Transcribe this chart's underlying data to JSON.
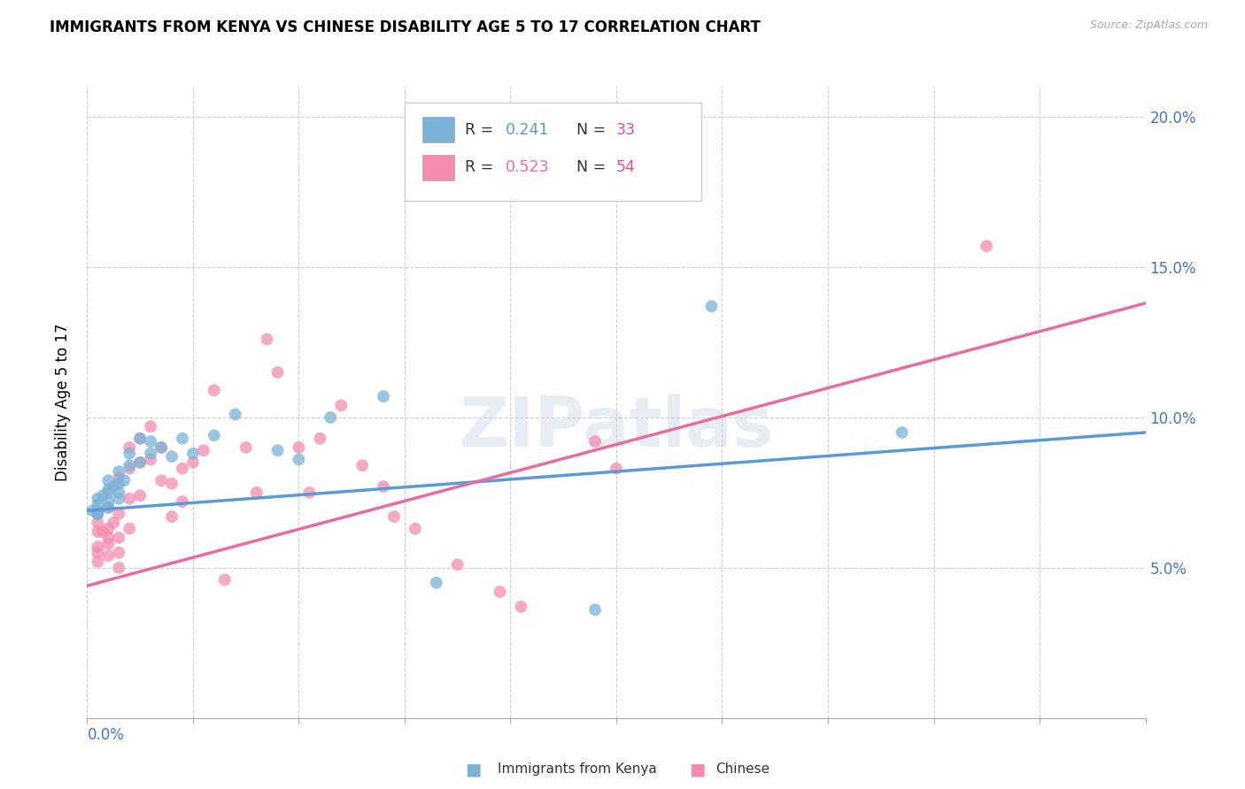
{
  "title": "IMMIGRANTS FROM KENYA VS CHINESE DISABILITY AGE 5 TO 17 CORRELATION CHART",
  "source": "Source: ZipAtlas.com",
  "ylabel": "Disability Age 5 to 17",
  "xlim": [
    0.0,
    0.1
  ],
  "ylim": [
    0.0,
    0.21
  ],
  "yticks": [
    0.05,
    0.1,
    0.15,
    0.2
  ],
  "ytick_labels": [
    "5.0%",
    "10.0%",
    "15.0%",
    "20.0%"
  ],
  "xticks": [
    0.0,
    0.01,
    0.02,
    0.03,
    0.04,
    0.05,
    0.06,
    0.07,
    0.08,
    0.09,
    0.1
  ],
  "color_kenya": "#7ab3d9",
  "color_chinese": "#f48cb1",
  "color_kenya_line": "#5b9bd5",
  "color_chinese_line": "#e86c9f",
  "watermark": "ZIPatlas",
  "kenya_line_x0": 0.0,
  "kenya_line_y0": 0.069,
  "kenya_line_x1": 0.1,
  "kenya_line_y1": 0.095,
  "chinese_line_x0": 0.0,
  "chinese_line_y0": 0.044,
  "chinese_line_x1": 0.1,
  "chinese_line_y1": 0.138,
  "kenya_x": [
    0.0005,
    0.001,
    0.001,
    0.001,
    0.001,
    0.001,
    0.0015,
    0.002,
    0.002,
    0.002,
    0.002,
    0.002,
    0.0025,
    0.003,
    0.003,
    0.003,
    0.003,
    0.0035,
    0.004,
    0.004,
    0.005,
    0.005,
    0.006,
    0.006,
    0.007,
    0.008,
    0.009,
    0.01,
    0.012,
    0.014,
    0.018,
    0.02,
    0.023,
    0.028,
    0.033,
    0.048,
    0.059,
    0.077
  ],
  "kenya_y": [
    0.069,
    0.068,
    0.071,
    0.073,
    0.068,
    0.069,
    0.074,
    0.072,
    0.076,
    0.07,
    0.075,
    0.079,
    0.077,
    0.073,
    0.078,
    0.075,
    0.082,
    0.079,
    0.084,
    0.088,
    0.085,
    0.093,
    0.092,
    0.088,
    0.09,
    0.087,
    0.093,
    0.088,
    0.094,
    0.101,
    0.089,
    0.086,
    0.1,
    0.107,
    0.045,
    0.036,
    0.137,
    0.095
  ],
  "chinese_x": [
    0.001,
    0.001,
    0.001,
    0.001,
    0.001,
    0.001,
    0.0015,
    0.002,
    0.002,
    0.002,
    0.002,
    0.002,
    0.0025,
    0.003,
    0.003,
    0.003,
    0.003,
    0.003,
    0.004,
    0.004,
    0.004,
    0.004,
    0.005,
    0.005,
    0.005,
    0.006,
    0.006,
    0.007,
    0.007,
    0.008,
    0.008,
    0.009,
    0.009,
    0.01,
    0.011,
    0.012,
    0.013,
    0.015,
    0.016,
    0.017,
    0.018,
    0.02,
    0.021,
    0.022,
    0.024,
    0.026,
    0.028,
    0.029,
    0.031,
    0.035,
    0.039,
    0.041,
    0.085,
    0.048,
    0.05
  ],
  "chinese_y": [
    0.068,
    0.065,
    0.062,
    0.057,
    0.052,
    0.055,
    0.062,
    0.07,
    0.063,
    0.058,
    0.054,
    0.06,
    0.065,
    0.068,
    0.055,
    0.05,
    0.08,
    0.06,
    0.09,
    0.083,
    0.073,
    0.063,
    0.093,
    0.085,
    0.074,
    0.097,
    0.086,
    0.09,
    0.079,
    0.078,
    0.067,
    0.083,
    0.072,
    0.085,
    0.089,
    0.109,
    0.046,
    0.09,
    0.075,
    0.126,
    0.115,
    0.09,
    0.075,
    0.093,
    0.104,
    0.084,
    0.077,
    0.067,
    0.063,
    0.051,
    0.042,
    0.037,
    0.157,
    0.092,
    0.083
  ]
}
